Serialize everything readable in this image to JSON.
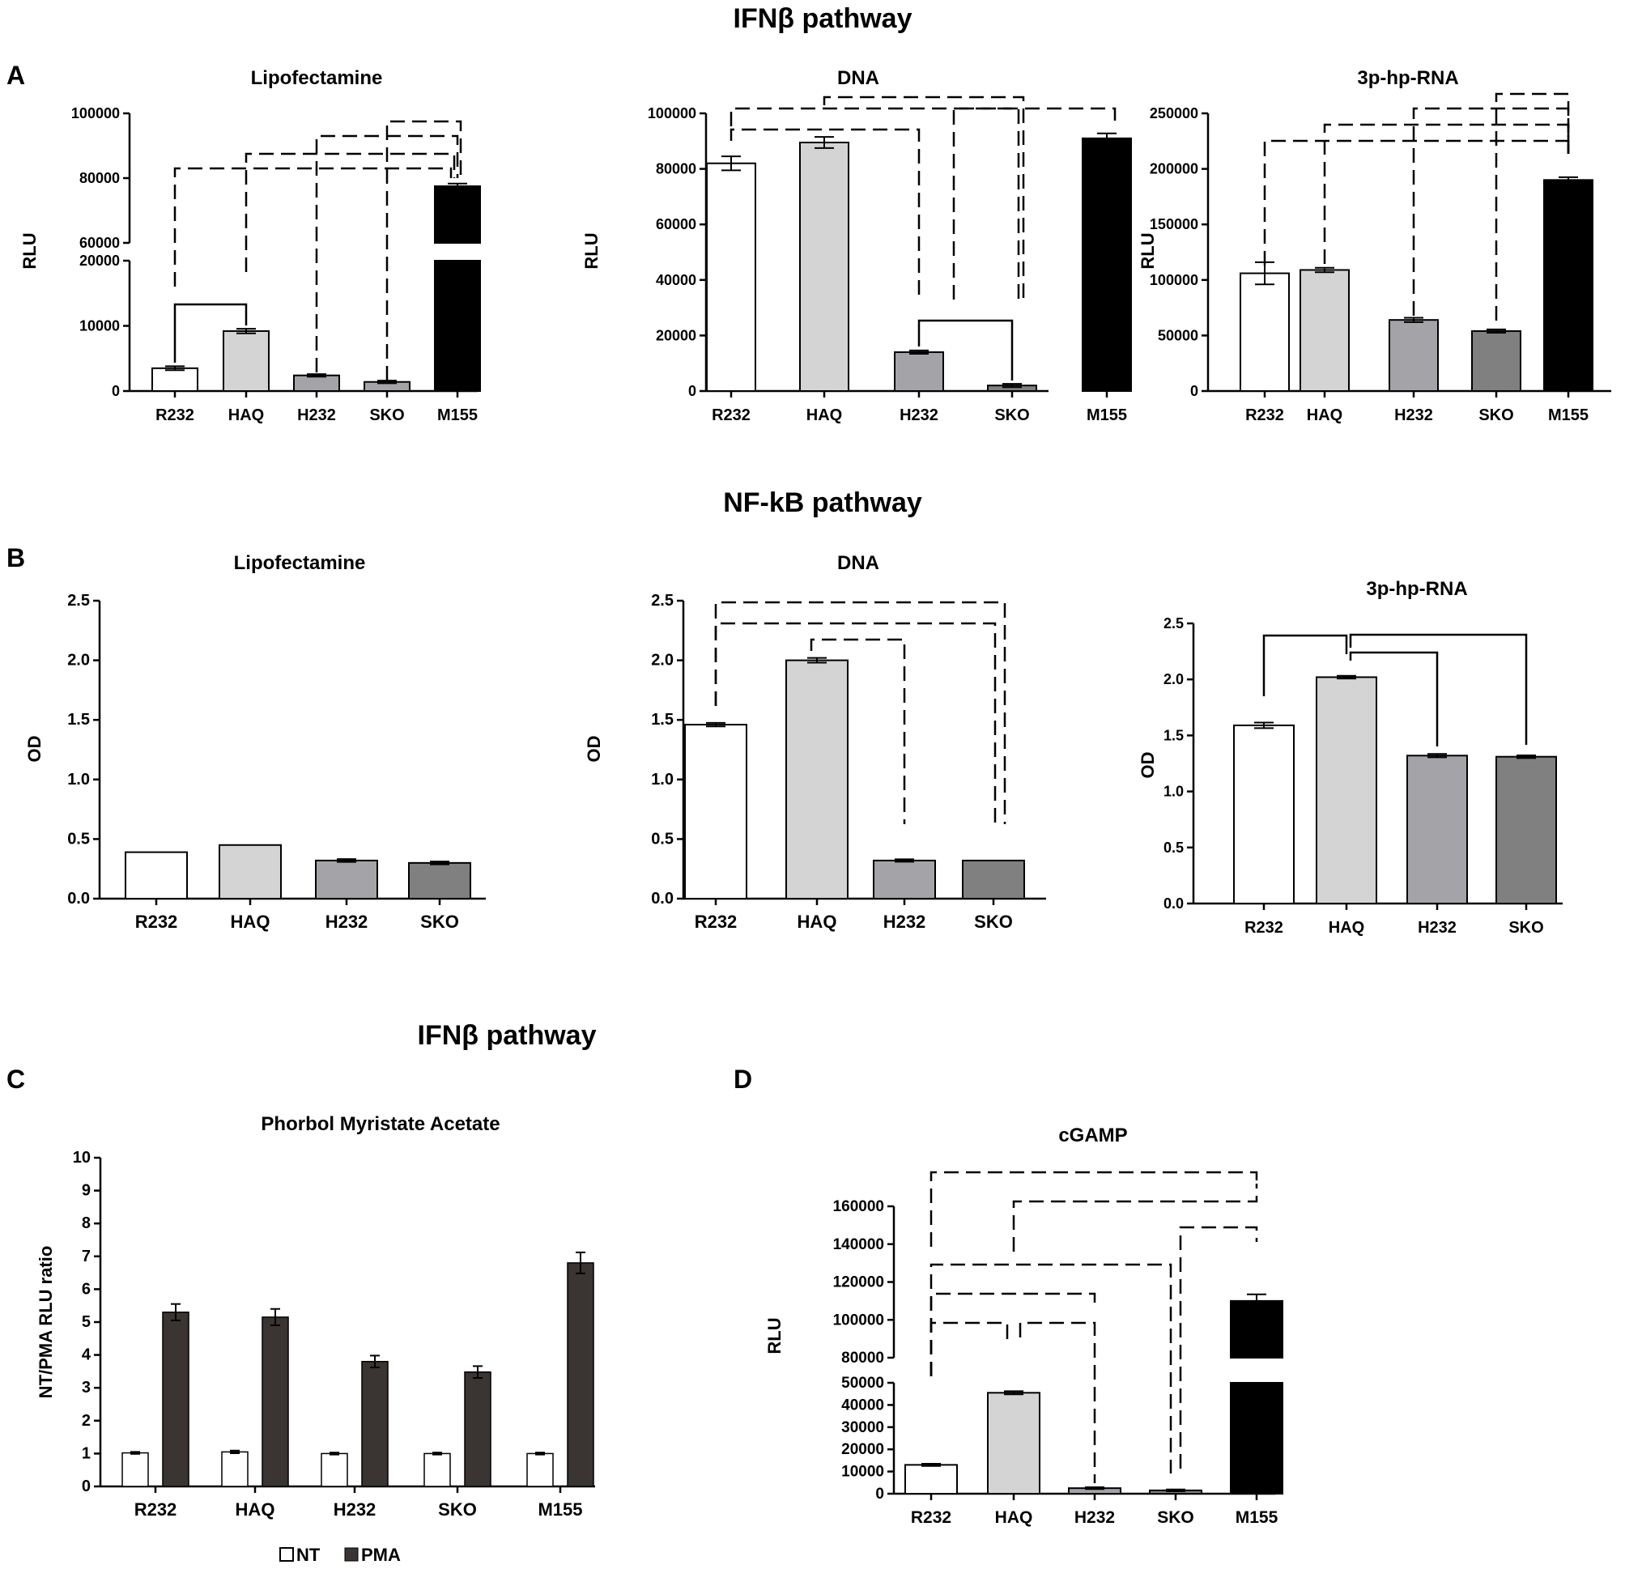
{
  "colors": {
    "white": "#ffffff",
    "light_gray": "#d4d4d4",
    "mid_gray": "#a3a3a8",
    "dark_gray": "#808080",
    "black": "#000000",
    "nt": "#ffffff",
    "pma": "#3a3532"
  },
  "sections": {
    "ifn_title_top": "IFNβ pathway",
    "nfkb_title": "NF-kB pathway",
    "ifn_title_bottom": "IFNβ pathway"
  },
  "panel_letters": {
    "A": "A",
    "B": "B",
    "C": "C",
    "D": "D"
  },
  "chart_data": [
    {
      "id": "A1",
      "type": "bar",
      "title": "Lipofectamine",
      "ylabel": "RLU",
      "xlabel": "",
      "broken_axis": true,
      "categories": [
        "R232",
        "HAQ",
        "H232",
        "SKO",
        "M155"
      ],
      "values": [
        3500,
        9200,
        2400,
        1400,
        77500
      ],
      "errors": [
        300,
        350,
        200,
        200,
        800
      ],
      "lower_ticks": [
        "0",
        "10000",
        "20000"
      ],
      "upper_ticks": [
        "60000",
        "80000",
        "100000"
      ],
      "lower_range": [
        0,
        20000
      ],
      "upper_range": [
        60000,
        100000
      ]
    },
    {
      "id": "A2",
      "type": "bar",
      "title": "DNA",
      "ylabel": "RLU",
      "xlabel": "",
      "categories": [
        "R232",
        "HAQ",
        "H232",
        "SKO",
        "M155"
      ],
      "values": [
        82000,
        89500,
        14000,
        2000,
        91000
      ],
      "errors": [
        2500,
        2000,
        600,
        600,
        1800
      ],
      "ylim": [
        0,
        100000
      ],
      "yticks": [
        "0",
        "20000",
        "40000",
        "60000",
        "80000",
        "100000"
      ]
    },
    {
      "id": "A3",
      "type": "bar",
      "title": "3p-hp-RNA",
      "ylabel": "RLU",
      "xlabel": "",
      "categories": [
        "R232",
        "HAQ",
        "H232",
        "SKO",
        "M155"
      ],
      "values": [
        106000,
        109000,
        64000,
        54000,
        190000
      ],
      "errors": [
        10000,
        2000,
        2000,
        1500,
        2500
      ],
      "ylim": [
        0,
        250000
      ],
      "yticks": [
        "0",
        "50000",
        "100000",
        "150000",
        "200000",
        "250000"
      ]
    },
    {
      "id": "B1",
      "type": "bar",
      "title": "Lipofectamine",
      "ylabel": "OD",
      "xlabel": "",
      "categories": [
        "R232",
        "HAQ",
        "H232",
        "SKO"
      ],
      "values": [
        0.39,
        0.45,
        0.32,
        0.3
      ],
      "errors": [
        0.0,
        0.0,
        0.012,
        0.012
      ],
      "ylim": [
        0,
        2.5
      ],
      "yticks": [
        "0.0",
        "0.5",
        "1.0",
        "1.5",
        "2.0",
        "2.5"
      ]
    },
    {
      "id": "B2",
      "type": "bar",
      "title": "DNA",
      "ylabel": "OD",
      "xlabel": "",
      "categories": [
        "R232",
        "HAQ",
        "H232",
        "SKO"
      ],
      "values": [
        1.46,
        2.0,
        0.32,
        0.32
      ],
      "errors": [
        0.015,
        0.02,
        0.01,
        0.0
      ],
      "ylim": [
        0,
        2.5
      ],
      "yticks": [
        "0.0",
        "0.5",
        "1.0",
        "1.5",
        "2.0",
        "2.5"
      ]
    },
    {
      "id": "B3",
      "type": "bar",
      "title": "3p-hp-RNA",
      "ylabel": "OD",
      "xlabel": "",
      "categories": [
        "R232",
        "HAQ",
        "H232",
        "SKO"
      ],
      "values": [
        1.59,
        2.02,
        1.32,
        1.31
      ],
      "errors": [
        0.025,
        0.012,
        0.015,
        0.012
      ],
      "ylim": [
        0,
        2.5
      ],
      "yticks": [
        "0.0",
        "0.5",
        "1.0",
        "1.5",
        "2.0",
        "2.5"
      ]
    },
    {
      "id": "C",
      "type": "bar",
      "title": "Phorbol Myristate Acetate",
      "ylabel": "NT/PMA RLU ratio",
      "xlabel": "",
      "categories": [
        "R232",
        "HAQ",
        "H232",
        "SKO",
        "M155"
      ],
      "series": [
        {
          "name": "NT",
          "values": [
            1.02,
            1.05,
            1.0,
            1.0,
            1.0
          ],
          "errors": [
            0.03,
            0.04,
            0.03,
            0.03,
            0.03
          ]
        },
        {
          "name": "PMA",
          "values": [
            5.3,
            5.15,
            3.8,
            3.48,
            6.8
          ],
          "errors": [
            0.25,
            0.25,
            0.18,
            0.18,
            0.32
          ]
        }
      ],
      "ylim": [
        0,
        10
      ],
      "yticks": [
        "0",
        "1",
        "2",
        "3",
        "4",
        "5",
        "6",
        "7",
        "8",
        "9",
        "10"
      ],
      "legend": [
        "NT",
        "PMA"
      ]
    },
    {
      "id": "D",
      "type": "bar",
      "title": "cGAMP",
      "ylabel": "RLU",
      "xlabel": "",
      "broken_axis": true,
      "categories": [
        "R232",
        "HAQ",
        "H232",
        "SKO",
        "M155"
      ],
      "values": [
        13000,
        45500,
        2500,
        1500,
        110000
      ],
      "errors": [
        500,
        700,
        400,
        400,
        3500
      ],
      "lower_ticks": [
        "0",
        "10000",
        "20000",
        "30000",
        "40000",
        "50000"
      ],
      "upper_ticks": [
        "80000",
        "100000",
        "120000",
        "140000",
        "160000"
      ],
      "lower_range": [
        0,
        50000
      ],
      "upper_range": [
        80000,
        160000
      ]
    }
  ]
}
